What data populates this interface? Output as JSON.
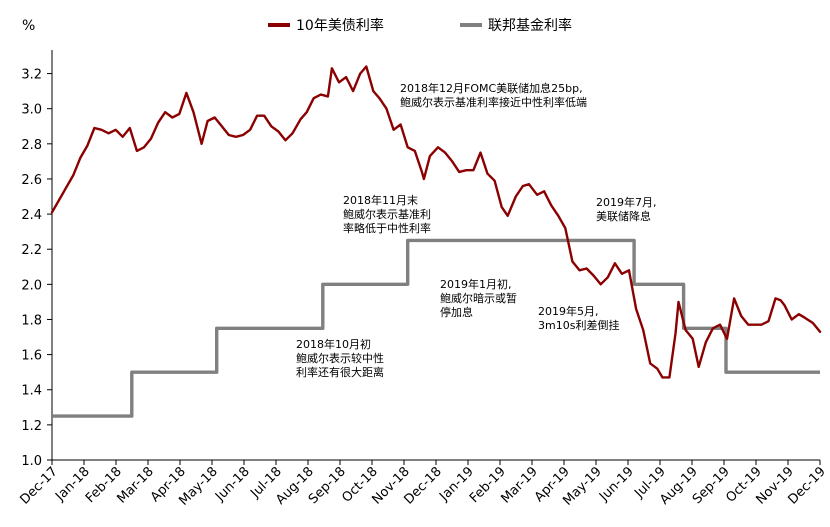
{
  "chart_data": {
    "type": "line",
    "title": "",
    "xlabel": "",
    "ylabel": "%",
    "ylim": [
      1.0,
      3.3
    ],
    "yticks": [
      "1.0",
      "1.2",
      "1.4",
      "1.6",
      "1.8",
      "2.0",
      "2.2",
      "2.4",
      "2.6",
      "2.8",
      "3.0",
      "3.2"
    ],
    "xticks": [
      "Dec-17",
      "Jan-18",
      "Feb-18",
      "Mar-18",
      "Apr-18",
      "May-18",
      "Jun-18",
      "Jul-18",
      "Aug-18",
      "Sep-18",
      "Oct-18",
      "Nov-18",
      "Dec-18",
      "Jan-19",
      "Feb-19",
      "Mar-19",
      "Apr-19",
      "May-19",
      "Jun-19",
      "Jul-19",
      "Aug-19",
      "Sep-19",
      "Oct-19",
      "Nov-19",
      "Dec-19"
    ],
    "grid": false,
    "legend_position": "top",
    "colors": {
      "treasury": "#8B0000",
      "fed": "#808080"
    },
    "series": [
      {
        "name": "10年美债利率",
        "color": "#8B0000",
        "points": [
          [
            "2018-01-01",
            2.41
          ],
          [
            "2018-01-08",
            2.48
          ],
          [
            "2018-01-15",
            2.55
          ],
          [
            "2018-01-22",
            2.62
          ],
          [
            "2018-01-29",
            2.72
          ],
          [
            "2018-02-05",
            2.79
          ],
          [
            "2018-02-12",
            2.89
          ],
          [
            "2018-02-19",
            2.88
          ],
          [
            "2018-02-26",
            2.86
          ],
          [
            "2018-03-05",
            2.88
          ],
          [
            "2018-03-12",
            2.84
          ],
          [
            "2018-03-19",
            2.89
          ],
          [
            "2018-03-26",
            2.76
          ],
          [
            "2018-04-02",
            2.78
          ],
          [
            "2018-04-09",
            2.83
          ],
          [
            "2018-04-16",
            2.92
          ],
          [
            "2018-04-23",
            2.98
          ],
          [
            "2018-04-30",
            2.95
          ],
          [
            "2018-05-07",
            2.97
          ],
          [
            "2018-05-14",
            3.09
          ],
          [
            "2018-05-21",
            2.98
          ],
          [
            "2018-05-29",
            2.8
          ],
          [
            "2018-06-04",
            2.93
          ],
          [
            "2018-06-11",
            2.95
          ],
          [
            "2018-06-18",
            2.9
          ],
          [
            "2018-06-25",
            2.85
          ],
          [
            "2018-07-02",
            2.84
          ],
          [
            "2018-07-09",
            2.85
          ],
          [
            "2018-07-16",
            2.88
          ],
          [
            "2018-07-23",
            2.96
          ],
          [
            "2018-07-30",
            2.96
          ],
          [
            "2018-08-06",
            2.9
          ],
          [
            "2018-08-13",
            2.87
          ],
          [
            "2018-08-20",
            2.82
          ],
          [
            "2018-08-27",
            2.86
          ],
          [
            "2018-09-04",
            2.94
          ],
          [
            "2018-09-10",
            2.98
          ],
          [
            "2018-09-17",
            3.06
          ],
          [
            "2018-09-24",
            3.08
          ],
          [
            "2018-10-01",
            3.07
          ],
          [
            "2018-10-05",
            3.23
          ],
          [
            "2018-10-12",
            3.15
          ],
          [
            "2018-10-19",
            3.18
          ],
          [
            "2018-10-26",
            3.1
          ],
          [
            "2018-11-02",
            3.2
          ],
          [
            "2018-11-08",
            3.24
          ],
          [
            "2018-11-15",
            3.1
          ],
          [
            "2018-11-21",
            3.06
          ],
          [
            "2018-11-28",
            3.0
          ],
          [
            "2018-12-05",
            2.88
          ],
          [
            "2018-12-12",
            2.91
          ],
          [
            "2018-12-19",
            2.78
          ],
          [
            "2018-12-26",
            2.76
          ],
          [
            "2019-01-02",
            2.64
          ],
          [
            "2019-01-04",
            2.6
          ],
          [
            "2019-01-10",
            2.73
          ],
          [
            "2019-01-18",
            2.78
          ],
          [
            "2019-01-25",
            2.75
          ],
          [
            "2019-02-01",
            2.7
          ],
          [
            "2019-02-08",
            2.64
          ],
          [
            "2019-02-15",
            2.65
          ],
          [
            "2019-02-22",
            2.65
          ],
          [
            "2019-03-01",
            2.75
          ],
          [
            "2019-03-08",
            2.63
          ],
          [
            "2019-03-15",
            2.59
          ],
          [
            "2019-03-22",
            2.44
          ],
          [
            "2019-03-28",
            2.39
          ],
          [
            "2019-04-05",
            2.5
          ],
          [
            "2019-04-12",
            2.56
          ],
          [
            "2019-04-18",
            2.57
          ],
          [
            "2019-04-26",
            2.51
          ],
          [
            "2019-05-03",
            2.53
          ],
          [
            "2019-05-10",
            2.45
          ],
          [
            "2019-05-17",
            2.39
          ],
          [
            "2019-05-24",
            2.32
          ],
          [
            "2019-05-31",
            2.13
          ],
          [
            "2019-06-07",
            2.08
          ],
          [
            "2019-06-14",
            2.09
          ],
          [
            "2019-06-21",
            2.05
          ],
          [
            "2019-06-28",
            2.0
          ],
          [
            "2019-07-05",
            2.04
          ],
          [
            "2019-07-12",
            2.12
          ],
          [
            "2019-07-19",
            2.06
          ],
          [
            "2019-07-26",
            2.08
          ],
          [
            "2019-08-02",
            1.86
          ],
          [
            "2019-08-09",
            1.74
          ],
          [
            "2019-08-16",
            1.55
          ],
          [
            "2019-08-23",
            1.52
          ],
          [
            "2019-08-28",
            1.47
          ],
          [
            "2019-09-04",
            1.47
          ],
          [
            "2019-09-10",
            1.72
          ],
          [
            "2019-09-13",
            1.9
          ],
          [
            "2019-09-20",
            1.74
          ],
          [
            "2019-09-27",
            1.69
          ],
          [
            "2019-10-03",
            1.53
          ],
          [
            "2019-10-10",
            1.67
          ],
          [
            "2019-10-17",
            1.75
          ],
          [
            "2019-10-24",
            1.77
          ],
          [
            "2019-10-31",
            1.69
          ],
          [
            "2019-11-07",
            1.92
          ],
          [
            "2019-11-14",
            1.82
          ],
          [
            "2019-11-21",
            1.77
          ],
          [
            "2019-11-27",
            1.77
          ],
          [
            "2019-12-04",
            1.77
          ],
          [
            "2019-12-11",
            1.79
          ],
          [
            "2019-12-18",
            1.92
          ],
          [
            "2019-12-23",
            1.91
          ],
          [
            "2019-12-27",
            1.88
          ],
          [
            "2020-01-03",
            1.8
          ],
          [
            "2020-01-10",
            1.83
          ],
          [
            "2020-01-16",
            1.81
          ],
          [
            "2020-01-24",
            1.78
          ],
          [
            "2020-01-31",
            1.73
          ]
        ]
      },
      {
        "name": "联邦基金利率",
        "color": "#808080",
        "points": [
          [
            "2018-01-01",
            1.25
          ],
          [
            "2018-03-21",
            1.25
          ],
          [
            "2018-03-21",
            1.5
          ],
          [
            "2018-06-13",
            1.5
          ],
          [
            "2018-06-13",
            1.75
          ],
          [
            "2018-09-26",
            1.75
          ],
          [
            "2018-09-26",
            2.0
          ],
          [
            "2018-12-19",
            2.0
          ],
          [
            "2018-12-19",
            2.25
          ],
          [
            "2019-07-31",
            2.25
          ],
          [
            "2019-07-31",
            2.0
          ],
          [
            "2019-09-18",
            2.0
          ],
          [
            "2019-09-18",
            1.75
          ],
          [
            "2019-10-30",
            1.75
          ],
          [
            "2019-10-30",
            1.5
          ],
          [
            "2020-01-31",
            1.5
          ]
        ]
      }
    ],
    "annotations": [
      {
        "lines": [
          "2018年12月FOMC美联储加息25bp,",
          "鲍威尔表示基准利率接近中性利率低端"
        ]
      },
      {
        "lines": [
          "2018年11月末",
          "鲍威尔表示基准利",
          "率略低于中性利率"
        ]
      },
      {
        "lines": [
          "2019年7月,",
          "美联储降息"
        ]
      },
      {
        "lines": [
          "2019年1月初,",
          "鲍威尔暗示或暂",
          "停加息"
        ]
      },
      {
        "lines": [
          "2019年5月,",
          "3m10s利差倒挂"
        ]
      },
      {
        "lines": [
          "2018年10月初",
          "鲍威尔表示较中性",
          "利率还有很大距离"
        ]
      }
    ]
  }
}
